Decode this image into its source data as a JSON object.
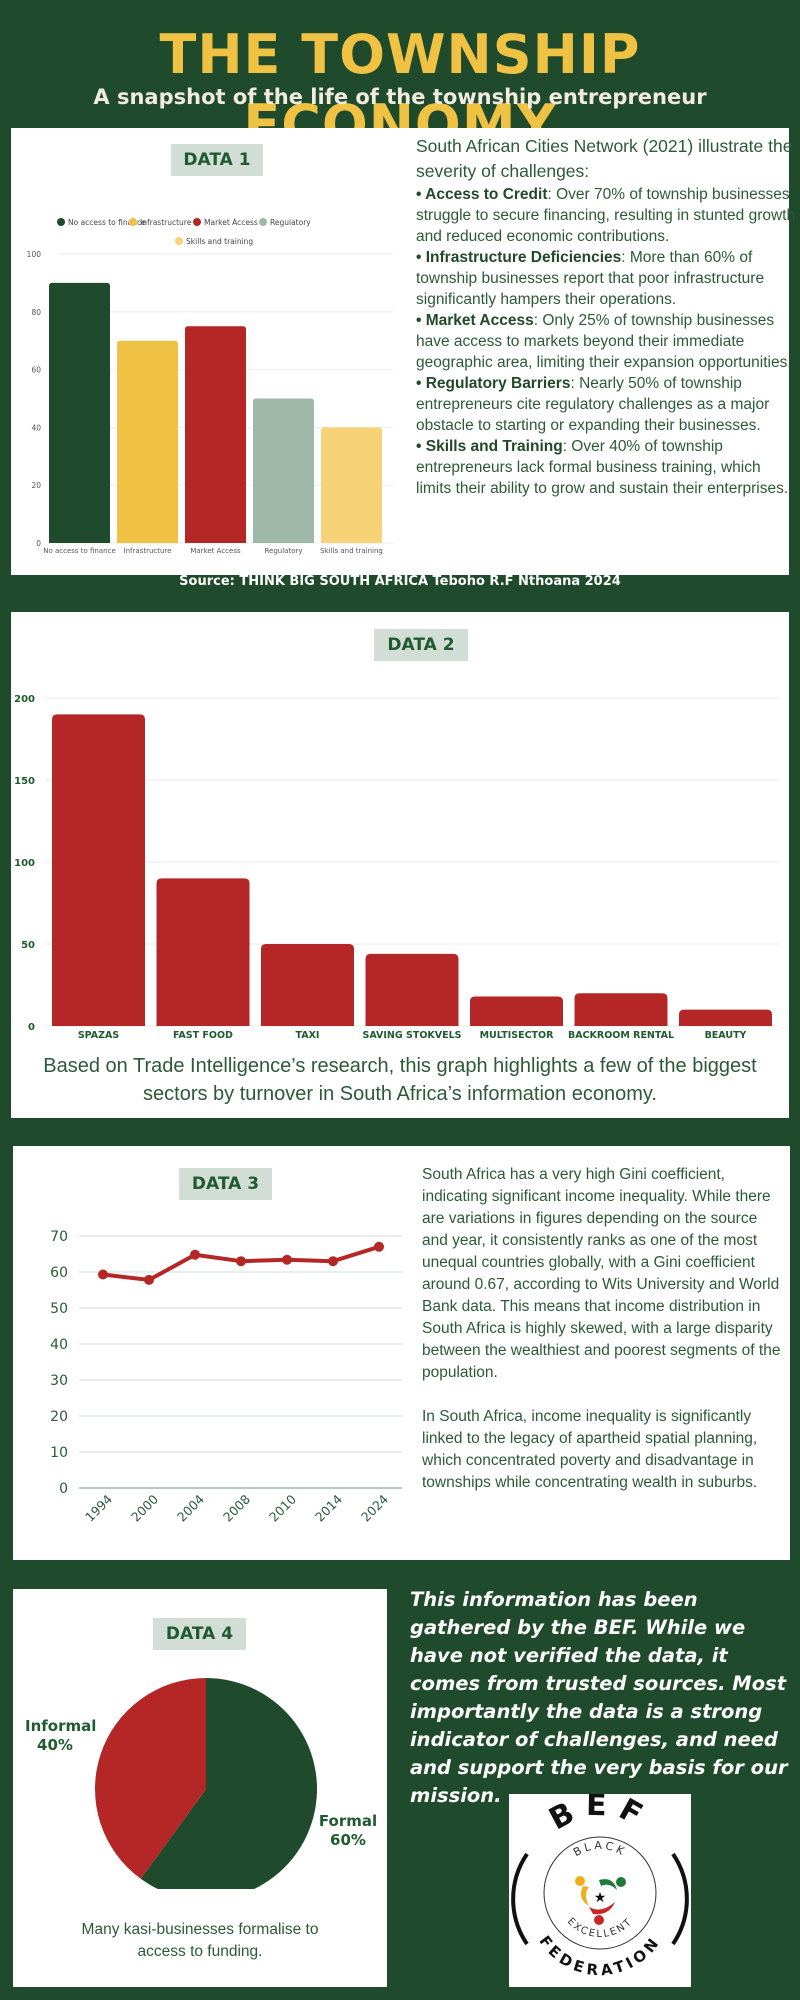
{
  "header": {
    "title": "THE TOWNSHIP ECONOMY",
    "subtitle": "A snapshot of the life of the township entrepreneur"
  },
  "colors": {
    "background": "#1f4a2b",
    "title": "#efc243",
    "green": "#1f4a2b",
    "yellow": "#efc243",
    "red": "#b52727",
    "sage": "#9fb8a7",
    "light_yellow": "#f7d277",
    "badge_bg": "#d2ddd5"
  },
  "data1": {
    "badge": "DATA 1",
    "intro": "South African Cities Network (2021) illustrate the severity of challenges:",
    "bullets": [
      {
        "title": "Access to Credit",
        "text": ": Over 70% of township businesses struggle to secure financing, resulting in stunted growth and reduced economic contributions."
      },
      {
        "title": "Infrastructure Deficiencies",
        "text": ": More than 60% of township businesses report that poor infrastructure significantly hampers their operations."
      },
      {
        "title": "Market Access",
        "text": ": Only 25% of township businesses have access to markets beyond their immediate geographic area, limiting their expansion opportunities."
      },
      {
        "title": "Regulatory Barriers",
        "text": ": Nearly 50% of township entrepreneurs cite regulatory challenges as a major obstacle to starting or expanding their businesses."
      },
      {
        "title": "Skills and Training",
        "text": ": Over 40% of township entrepreneurs lack formal business training, which limits their ability to grow and sustain their enterprises."
      }
    ],
    "source": "Source: THINK BIG SOUTH AFRICA Teboho R.F Nthoana 2024"
  },
  "data2": {
    "badge": "DATA 2",
    "caption_line1": "Based on Trade Intelligence’s research, this graph highlights a few of the biggest",
    "caption_line2": "sectors by turnover in South Africa’s information economy."
  },
  "data3": {
    "badge": "DATA 3",
    "para1": "South Africa has a very high Gini coefficient, indicating significant income inequality. While there are variations in figures depending on the source and year, it consistently ranks as one of the most unequal countries globally, with a Gini coefficient around 0.67, according to Wits University and World Bank data. This means that income distribution in South Africa is highly skewed, with a large disparity between the wealthiest and poorest segments of the population.",
    "para2": "In South Africa, income inequality is significantly linked to the legacy of apartheid spatial planning, which concentrated poverty and disadvantage in townships while concentrating wealth in suburbs."
  },
  "data4": {
    "badge": "DATA 4",
    "informal_label": "Informal",
    "informal_pct": "40%",
    "formal_label": "Formal",
    "formal_pct": "60%",
    "caption_line1": "Many kasi-businesses formalise to",
    "caption_line2": "access to funding."
  },
  "bef": {
    "statement": "This information has been gathered by the BEF. While we have not verified the data, it comes from trusted sources. Most importantly the data is a strong indicator of challenges, and need and support the very basis for our mission.",
    "logo_top": "BEF",
    "logo_black": "BLACK",
    "logo_excellent": "EXCELLENT",
    "logo_federation": "FEDERATION"
  },
  "chart_data": [
    {
      "type": "bar",
      "title": "DATA 1",
      "categories": [
        "No access to finance",
        "Infrastructure",
        "Market Access",
        "Regulatory",
        "Skills and training"
      ],
      "values": [
        90,
        70,
        75,
        50,
        40
      ],
      "colors": [
        "#1f4a2b",
        "#efc243",
        "#b52727",
        "#9fb8a7",
        "#f7d277"
      ],
      "legend": [
        "No access to finance",
        "Infrastructure",
        "Market Access",
        "Regulatory",
        "Skills and training"
      ],
      "legend_position": "top",
      "yticks": [
        0,
        20,
        40,
        60,
        80,
        100
      ],
      "ylim": [
        0,
        100
      ],
      "grid": true,
      "xlabel": "",
      "ylabel": ""
    },
    {
      "type": "bar",
      "title": "DATA 2",
      "categories": [
        "SPAZAS",
        "FAST FOOD",
        "TAXI",
        "SAVING STOKVELS",
        "MULTISECTOR",
        "BACKROOM RENTAL",
        "BEAUTY"
      ],
      "values": [
        190,
        90,
        50,
        44,
        18,
        20,
        10
      ],
      "yticks": [
        0,
        50,
        100,
        150,
        200
      ],
      "ylim": [
        0,
        200
      ],
      "grid": true,
      "xlabel": "",
      "ylabel": ""
    },
    {
      "type": "line",
      "title": "DATA 3",
      "x": [
        "1994",
        "2000",
        "2004",
        "2008",
        "2010",
        "2014",
        "2024"
      ],
      "values": [
        59.3,
        57.8,
        64.8,
        63,
        63.4,
        63,
        67
      ],
      "yticks": [
        0,
        10,
        20,
        30,
        40,
        50,
        60,
        70
      ],
      "ylim": [
        0,
        70
      ],
      "grid": true,
      "xlabel": "",
      "ylabel": ""
    },
    {
      "type": "pie",
      "title": "DATA 4",
      "categories": [
        "Formal",
        "Informal"
      ],
      "values": [
        60,
        40
      ],
      "colors": [
        "#1f4a2b",
        "#b52727"
      ]
    }
  ]
}
